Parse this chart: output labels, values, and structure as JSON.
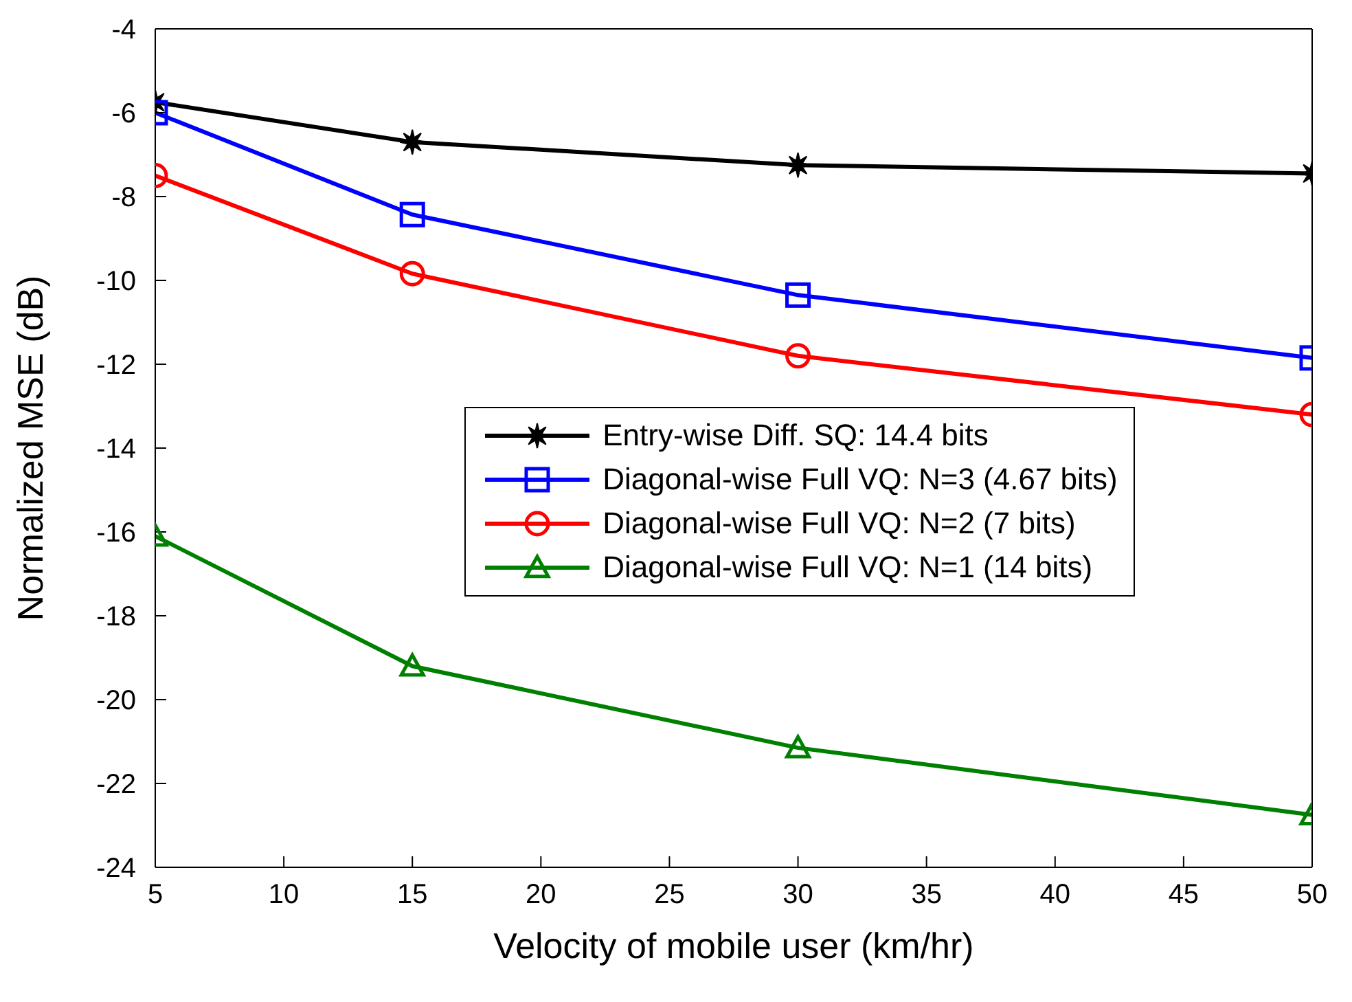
{
  "chart_data": {
    "type": "line",
    "xlabel": "Velocity of mobile user (km/hr)",
    "ylabel": "Normalized MSE (dB)",
    "x": [
      5,
      15,
      30,
      50
    ],
    "xlim": [
      5,
      50
    ],
    "xticks": [
      5,
      10,
      15,
      20,
      25,
      30,
      35,
      40,
      45,
      50
    ],
    "ylim": [
      -24,
      -4
    ],
    "yticks": [
      -24,
      -22,
      -20,
      -18,
      -16,
      -14,
      -12,
      -10,
      -8,
      -6,
      -4
    ],
    "grid": false,
    "legend": "center",
    "line_style": "solid",
    "series": [
      {
        "name": "Entry-wise Diff. SQ: 14.4 bits",
        "color": "#000000",
        "marker": "star",
        "values": [
          -5.75,
          -6.7,
          -7.25,
          -7.45
        ]
      },
      {
        "name": "Diagonal-wise Full VQ: N=3 (4.67 bits)",
        "color": "#0000ff",
        "marker": "square",
        "values": [
          -6.0,
          -8.43,
          -10.35,
          -11.85
        ]
      },
      {
        "name": "Diagonal-wise Full VQ: N=2 (7 bits)",
        "color": "#ff0000",
        "marker": "circle",
        "values": [
          -7.5,
          -9.84,
          -11.8,
          -13.2
        ]
      },
      {
        "name": "Diagonal-wise Full VQ: N=1 (14 bits)",
        "color": "#008000",
        "marker": "triangle",
        "values": [
          -16.1,
          -19.2,
          -21.15,
          -22.75
        ]
      }
    ]
  }
}
